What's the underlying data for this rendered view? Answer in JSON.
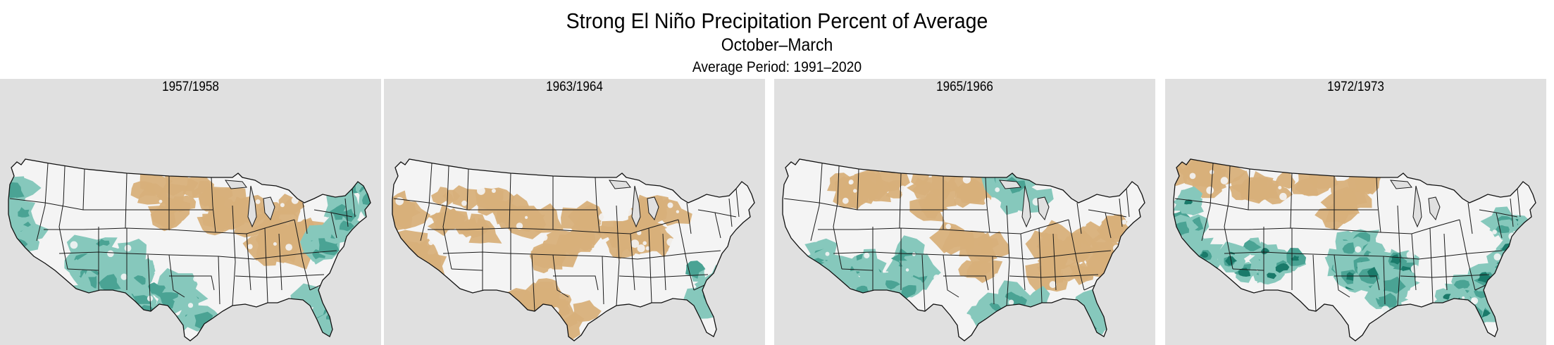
{
  "title": "Strong El Niño Precipitation Percent of Average",
  "subtitle": "October–March",
  "average_period": "Average Period: 1991–2020",
  "colors": {
    "dry": "#d8b07a",
    "wet_light": "#86c8bc",
    "wet_medium": "#4aa394",
    "wet_dark": "#1a7a6a",
    "near_normal": "#f4f4f4",
    "panel_background": "#e0e0e0"
  },
  "panels": [
    {
      "label": "1957/1958",
      "wet_regions": [
        "West Coast",
        "Southwest",
        "Texas",
        "New Mexico",
        "Arizona",
        "Florida",
        "Mid-Atlantic",
        "New England coast"
      ],
      "dry_regions": [
        "Northern Plains",
        "Upper Midwest",
        "Great Lakes",
        "Ohio Valley"
      ]
    },
    {
      "label": "1963/1964",
      "wet_regions": [
        "Southeast coast",
        "Carolinas"
      ],
      "dry_regions": [
        "California",
        "Great Basin",
        "Rockies",
        "Great Plains",
        "Midwest",
        "Great Lakes",
        "Texas"
      ]
    },
    {
      "label": "1965/1966",
      "wet_regions": [
        "Southern California",
        "Arizona",
        "New Mexico",
        "Gulf Coast",
        "Florida",
        "Upper Great Lakes"
      ],
      "dry_regions": [
        "Northern Rockies",
        "Northern Plains",
        "Central Plains",
        "Tennessee Valley",
        "Ohio Valley",
        "Mid-Atlantic"
      ]
    },
    {
      "label": "1972/1973",
      "wet_regions": [
        "California",
        "Southwest",
        "Southern Plains",
        "Central Plains",
        "Mississippi Valley",
        "Southeast",
        "East Coast"
      ],
      "dry_regions": [
        "Pacific Northwest",
        "Northern Rockies",
        "Northern Plains"
      ]
    }
  ]
}
